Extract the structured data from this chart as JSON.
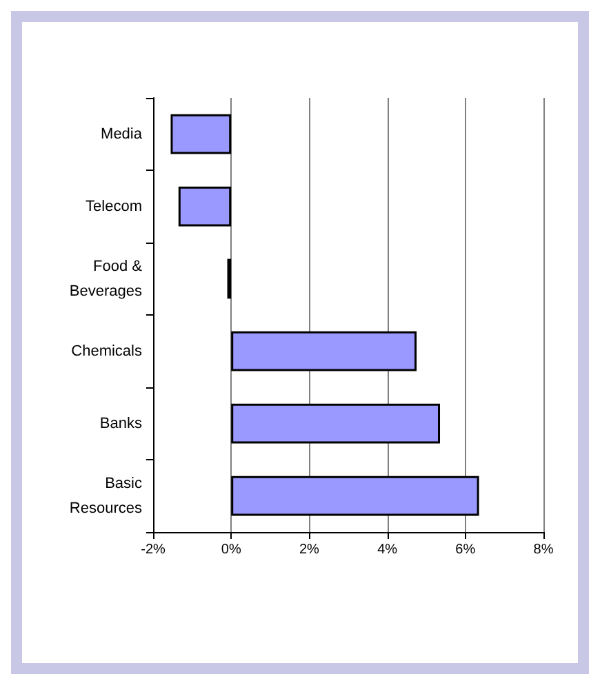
{
  "chart_data": {
    "type": "bar",
    "orientation": "horizontal",
    "categories": [
      "Media",
      "Telecom",
      "Food &\nBeverages",
      "Chemicals",
      "Banks",
      "Basic\nResources"
    ],
    "values": [
      -1.55,
      -1.35,
      -0.1,
      4.75,
      5.35,
      6.35
    ],
    "color": "#9999ff",
    "xlim": [
      -2,
      8
    ],
    "xticks": [
      {
        "value": -2,
        "label": "-2%"
      },
      {
        "value": 0,
        "label": "0%"
      },
      {
        "value": 2,
        "label": "2%"
      },
      {
        "value": 4,
        "label": "4%"
      },
      {
        "value": 6,
        "label": "6%"
      },
      {
        "value": 8,
        "label": "8%"
      }
    ],
    "grid": "x"
  }
}
